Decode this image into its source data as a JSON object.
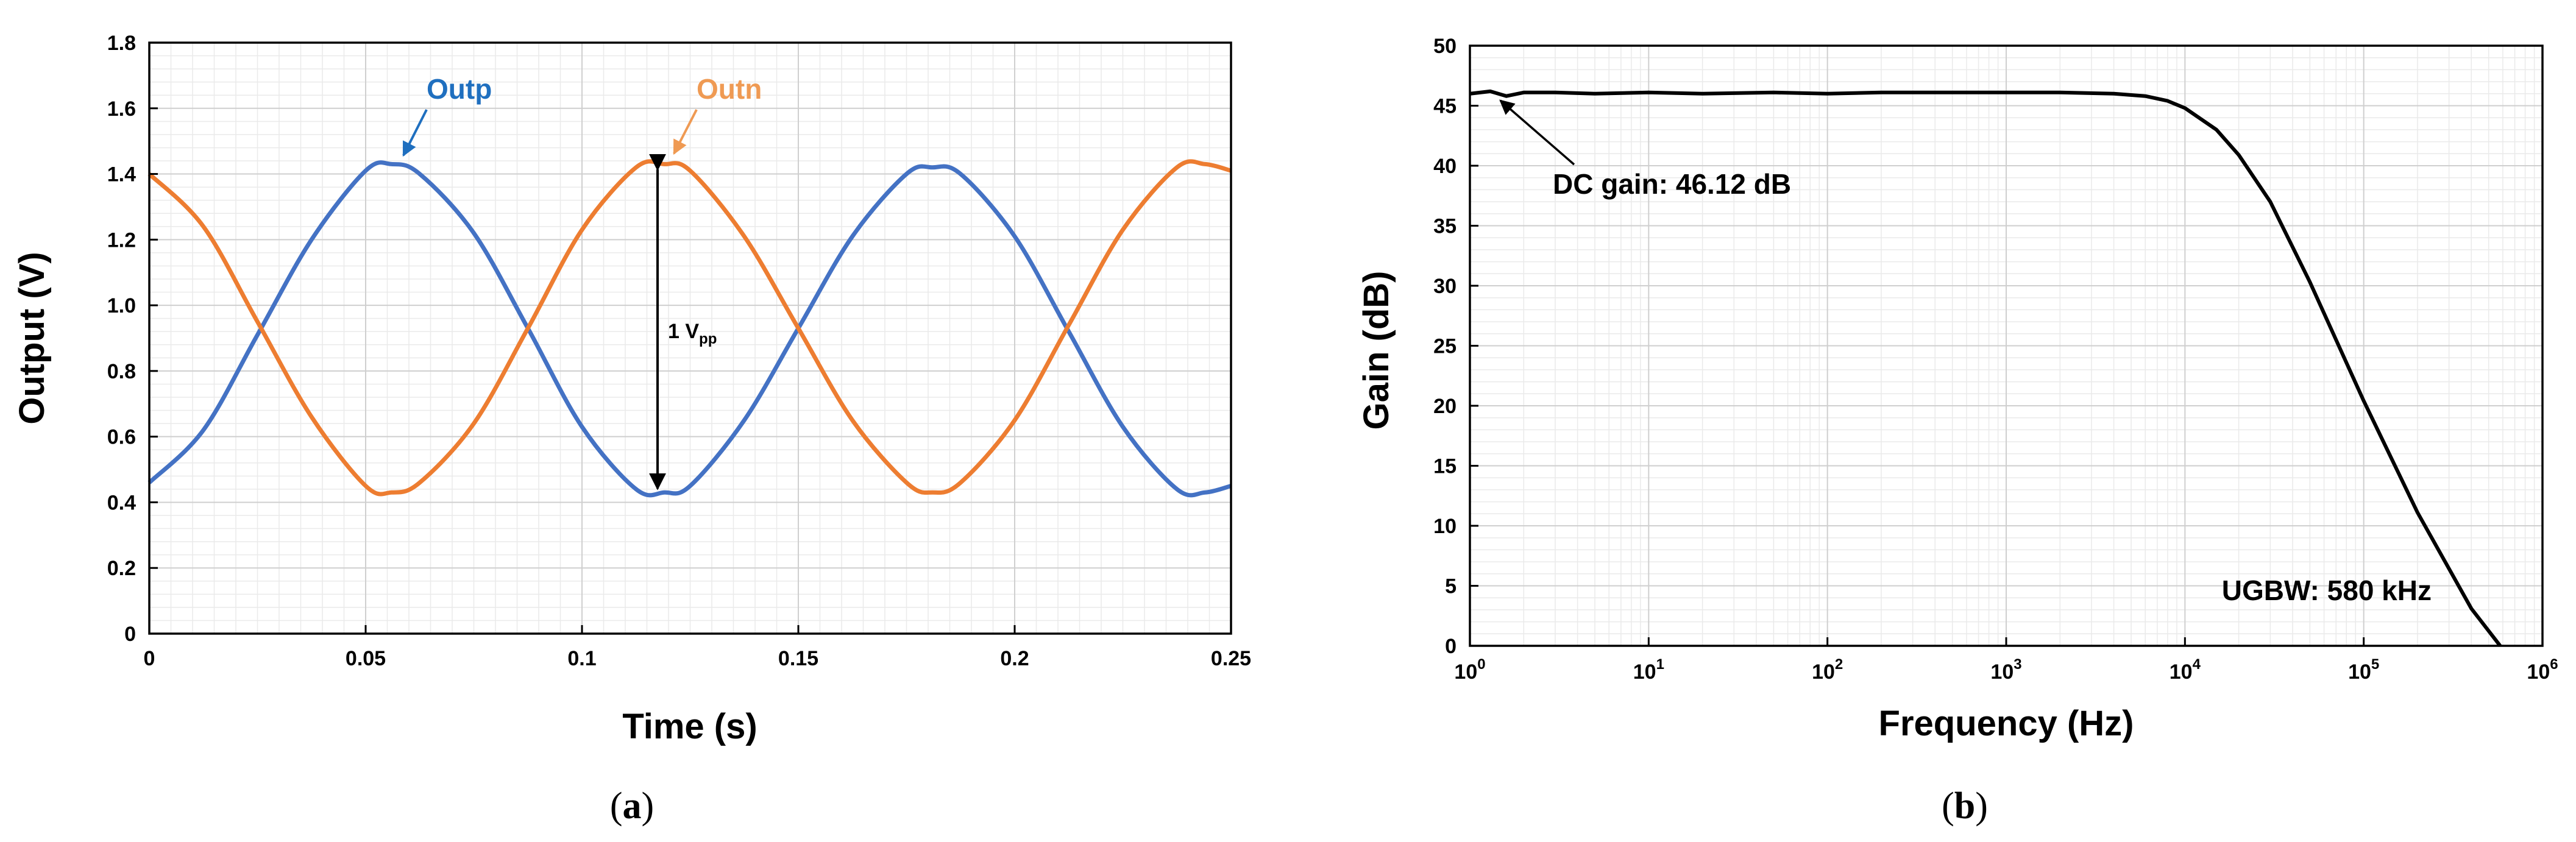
{
  "chart_data": [
    {
      "panel": "(a)",
      "type": "line",
      "xlabel": "Time (s)",
      "ylabel": "Output (V)",
      "xlim": [
        0,
        0.25
      ],
      "ylim": [
        0,
        1.8
      ],
      "xticks": [
        "0",
        "0.05",
        "0.1",
        "0.15",
        "0.2",
        "0.25"
      ],
      "yticks": [
        "0",
        "0.2",
        "0.4",
        "0.6",
        "0.8",
        "1.0",
        "1.2",
        "1.4",
        "1.6",
        "1.8"
      ],
      "grid": true,
      "series": [
        {
          "name": "Outp",
          "color": "#4472C4",
          "x": [
            0,
            0.0125,
            0.025,
            0.0375,
            0.05,
            0.056,
            0.0625,
            0.075,
            0.0875,
            0.1,
            0.1125,
            0.119,
            0.125,
            0.1375,
            0.15,
            0.1625,
            0.175,
            0.181,
            0.1875,
            0.2,
            0.2125,
            0.225,
            0.2375,
            0.244,
            0.25
          ],
          "y": [
            0.46,
            0.62,
            0.91,
            1.2,
            1.41,
            1.43,
            1.4,
            1.22,
            0.93,
            0.63,
            0.44,
            0.43,
            0.45,
            0.65,
            0.93,
            1.21,
            1.4,
            1.42,
            1.4,
            1.21,
            0.92,
            0.63,
            0.44,
            0.43,
            0.45
          ]
        },
        {
          "name": "Outn",
          "color": "#ED7D31",
          "x": [
            0,
            0.0125,
            0.025,
            0.0375,
            0.05,
            0.056,
            0.0625,
            0.075,
            0.0875,
            0.1,
            0.1125,
            0.119,
            0.125,
            0.1375,
            0.15,
            0.1625,
            0.175,
            0.181,
            0.1875,
            0.2,
            0.2125,
            0.225,
            0.2375,
            0.244,
            0.25
          ],
          "y": [
            1.4,
            1.24,
            0.95,
            0.66,
            0.45,
            0.43,
            0.46,
            0.64,
            0.93,
            1.23,
            1.42,
            1.43,
            1.41,
            1.21,
            0.93,
            0.65,
            0.46,
            0.43,
            0.46,
            0.65,
            0.94,
            1.23,
            1.42,
            1.43,
            1.41
          ]
        }
      ],
      "annotations": {
        "vpp_main": "1 V",
        "vpp_sub": "pp"
      }
    },
    {
      "panel": "(b)",
      "type": "line",
      "xlabel": "Frequency (Hz)",
      "ylabel": "Gain (dB)",
      "xscale": "log",
      "xlim": [
        1,
        1000000
      ],
      "ylim": [
        0,
        50
      ],
      "xtick_base": "10",
      "xtick_exponents": [
        "0",
        "1",
        "2",
        "3",
        "4",
        "5",
        "6"
      ],
      "yticks": [
        "0",
        "5",
        "10",
        "15",
        "20",
        "25",
        "30",
        "35",
        "40",
        "45",
        "50"
      ],
      "grid": true,
      "series": [
        {
          "color": "#000000",
          "x": [
            1,
            1.3,
            1.6,
            2,
            3,
            5,
            10,
            20,
            50,
            100,
            200,
            500,
            1000,
            2000,
            4000,
            6000,
            8000,
            10000,
            15000,
            20000,
            30000,
            50000,
            100000,
            200000,
            400000,
            580000
          ],
          "y": [
            46.0,
            46.2,
            45.8,
            46.1,
            46.1,
            46.0,
            46.1,
            46.0,
            46.1,
            46.0,
            46.1,
            46.1,
            46.1,
            46.1,
            46.0,
            45.8,
            45.4,
            44.8,
            43.0,
            40.9,
            37.0,
            30.3,
            20.4,
            11.1,
            3.1,
            0
          ]
        }
      ],
      "annotations": {
        "dc_gain": "DC gain: 46.12 dB",
        "ugbw": "UGBW: 580 kHz"
      }
    }
  ],
  "captions": {
    "a_open": "(",
    "a_letter": "a",
    "a_close": ")",
    "b_open": "(",
    "b_letter": "b",
    "b_close": ")"
  },
  "colors": {
    "outp": "#4472C4",
    "outp_label": "#1F6FBF",
    "outn": "#ED7D31",
    "outn_label": "#EF9A53",
    "gain_curve": "#000000",
    "grid_minor": "#EAEAEA",
    "grid_major": "#CFCFCF"
  }
}
